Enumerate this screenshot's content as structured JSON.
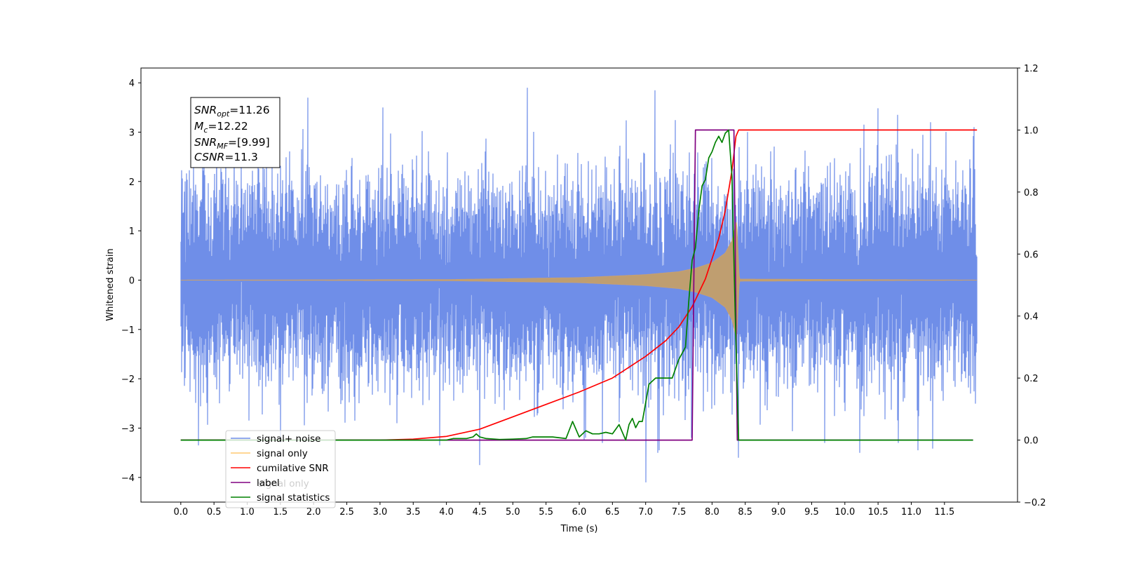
{
  "chart_data": {
    "type": "line",
    "xlabel": "Time (s)",
    "ylabel": "Whitened strain",
    "xlim": [
      -0.6,
      12.6
    ],
    "xticks": [
      0.0,
      0.5,
      1.0,
      1.5,
      2.0,
      2.5,
      3.0,
      3.5,
      4.0,
      4.5,
      5.0,
      5.5,
      6.0,
      6.5,
      7.0,
      7.5,
      8.0,
      8.5,
      9.0,
      9.5,
      10.0,
      10.5,
      11.0,
      11.5
    ],
    "xtick_labels": [
      "0.0",
      "0.5",
      "1.0",
      "1.5",
      "2.0",
      "2.5",
      "3.0",
      "3.5",
      "4.0",
      "4.5",
      "5.0",
      "5.5",
      "6.0",
      "6.5",
      "7.0",
      "7.5",
      "8.0",
      "8.5",
      "9.0",
      "9.5",
      "10.0",
      "10.5",
      "11.0",
      "11.5"
    ],
    "ylim_left": [
      -4.5,
      4.3
    ],
    "yticks_left": [
      4,
      3,
      2,
      1,
      0,
      -1,
      -2,
      -3,
      -4
    ],
    "ytick_labels_left": [
      "4",
      "3",
      "2",
      "1",
      "0",
      "−1",
      "−2",
      "−3",
      "−4"
    ],
    "ylim_right": [
      -0.2,
      1.2
    ],
    "yticks_right": [
      1.2,
      1.0,
      0.8,
      0.6,
      0.4,
      0.2,
      0.0,
      -0.2
    ],
    "ytick_labels_right": [
      "1.2",
      "1.0",
      "0.8",
      "0.6",
      "0.4",
      "0.2",
      "0.0",
      "−0.2"
    ],
    "grid": false,
    "legend_position": "lower-left",
    "annotation": {
      "lines": [
        {
          "main": "SNR",
          "sub": "opt",
          "rest": "=11.26"
        },
        {
          "main": "M",
          "sub": "c",
          "rest": "=12.22"
        },
        {
          "main": "SNR",
          "sub": "MF",
          "rest": "=[9.99]"
        },
        {
          "main": "CSNR",
          "sub": "",
          "rest": "=11.3"
        }
      ]
    },
    "legend": {
      "entries": [
        {
          "label": "signal+ noise",
          "color": "#6f8ee8"
        },
        {
          "label": "signal only",
          "color": "#ffc870"
        },
        {
          "label": "cumilative SNR",
          "color": "#ff0000"
        },
        {
          "label": "label",
          "color": "#800080"
        },
        {
          "label": "signal statistics",
          "color": "#008000"
        }
      ],
      "hidden_label": "signal only"
    },
    "series": [
      {
        "name": "signal+ noise",
        "axis": "left",
        "color": "#6f8ee8",
        "x_range": [
          0.0,
          11.99
        ],
        "noise_sigma": 0.95,
        "peaks": [
          [
            1.91,
            3.7
          ],
          [
            5.22,
            3.9
          ],
          [
            7.0,
            3.9
          ],
          [
            7.14,
            3.85
          ],
          [
            10.79,
            3.35
          ],
          [
            7.0,
            -4.1
          ],
          [
            4.5,
            -3.75
          ],
          [
            8.4,
            -3.6
          ],
          [
            11.1,
            -3.45
          ],
          [
            7.2,
            -3.45
          ],
          [
            0.27,
            -3.35
          ],
          [
            1.5,
            -3.3
          ],
          [
            3.9,
            -3.35
          ],
          [
            6.35,
            -3.3
          ],
          [
            9.7,
            -3.3
          ],
          [
            10.8,
            -3.3
          ]
        ]
      },
      {
        "name": "signal only",
        "axis": "left",
        "color": "#ffc870",
        "x_range": [
          0.0,
          11.99
        ],
        "envelope": [
          [
            0.0,
            0.0
          ],
          [
            4.0,
            0.01
          ],
          [
            5.0,
            0.03
          ],
          [
            6.0,
            0.05
          ],
          [
            6.5,
            0.08
          ],
          [
            7.0,
            0.11
          ],
          [
            7.5,
            0.17
          ],
          [
            7.75,
            0.24
          ],
          [
            8.0,
            0.35
          ],
          [
            8.2,
            0.55
          ],
          [
            8.3,
            0.8
          ],
          [
            8.37,
            1.2
          ],
          [
            8.41,
            0.02
          ],
          [
            11.99,
            0.0
          ]
        ]
      },
      {
        "name": "cumilative SNR",
        "axis": "right",
        "color": "#ff0000",
        "x": [
          0.0,
          3.0,
          3.5,
          4.0,
          4.5,
          5.0,
          5.5,
          6.0,
          6.5,
          7.0,
          7.3,
          7.5,
          7.7,
          7.9,
          8.1,
          8.2,
          8.3,
          8.36,
          8.4,
          11.99
        ],
        "y": [
          0.0,
          0.0,
          0.003,
          0.012,
          0.035,
          0.075,
          0.115,
          0.155,
          0.2,
          0.27,
          0.32,
          0.365,
          0.43,
          0.52,
          0.65,
          0.74,
          0.87,
          0.98,
          1.0,
          1.0
        ]
      },
      {
        "name": "label",
        "axis": "right",
        "color": "#800080",
        "x": [
          0.0,
          7.7,
          7.75,
          8.33,
          8.38,
          11.93
        ],
        "y": [
          0.0,
          0.0,
          1.0,
          1.0,
          0.0,
          0.0
        ]
      },
      {
        "name": "signal statistics",
        "axis": "right",
        "color": "#008000",
        "x": [
          0.0,
          4.0,
          4.1,
          4.3,
          4.4,
          4.45,
          4.5,
          4.6,
          4.8,
          5.0,
          5.2,
          5.3,
          5.5,
          5.6,
          5.8,
          5.9,
          6.0,
          6.1,
          6.2,
          6.3,
          6.4,
          6.5,
          6.6,
          6.7,
          6.75,
          6.8,
          6.85,
          6.9,
          6.95,
          7.05,
          7.15,
          7.3,
          7.4,
          7.5,
          7.6,
          7.65,
          7.7,
          7.75,
          7.8,
          7.85,
          7.9,
          7.95,
          8.0,
          8.05,
          8.1,
          8.15,
          8.2,
          8.25,
          8.3,
          8.35,
          8.4,
          8.45,
          11.93
        ],
        "y": [
          0.0,
          0.0,
          0.005,
          0.005,
          0.01,
          0.02,
          0.01,
          0.005,
          0.002,
          0.003,
          0.005,
          0.01,
          0.01,
          0.01,
          0.005,
          0.06,
          0.01,
          0.03,
          0.02,
          0.02,
          0.025,
          0.02,
          0.05,
          0.0,
          0.05,
          0.07,
          0.04,
          0.06,
          0.06,
          0.18,
          0.2,
          0.2,
          0.2,
          0.26,
          0.3,
          0.45,
          0.58,
          0.62,
          0.74,
          0.82,
          0.84,
          0.91,
          0.93,
          0.96,
          0.98,
          0.96,
          0.99,
          1.0,
          0.85,
          0.4,
          0.0,
          0.0,
          0.0
        ]
      }
    ]
  }
}
